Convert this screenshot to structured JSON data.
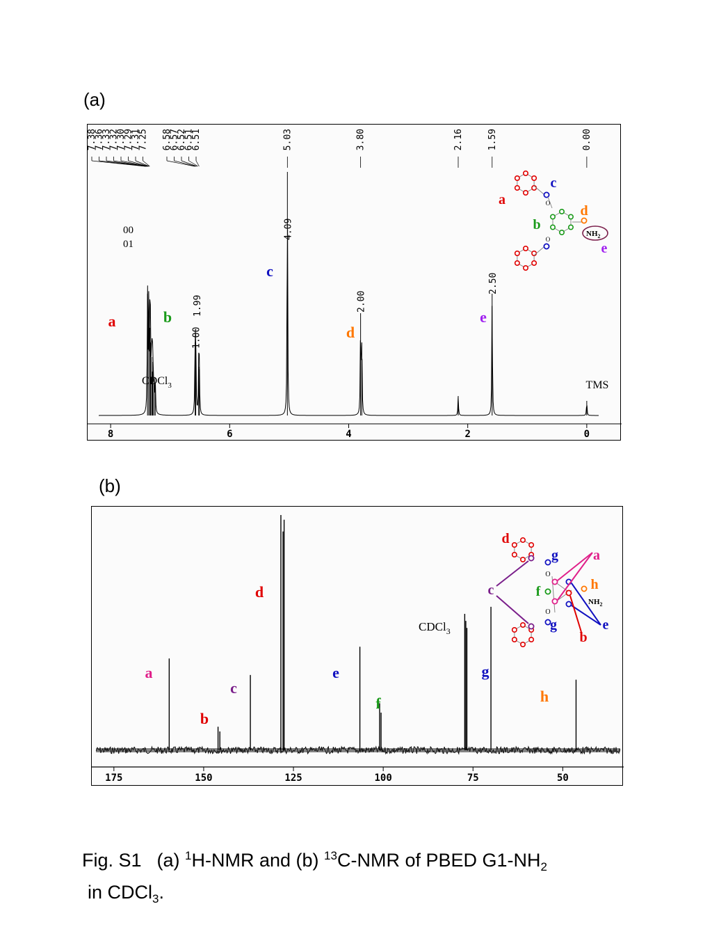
{
  "panel_a": {
    "tag": "(a)",
    "chart_data": {
      "type": "line",
      "nucleus": "1H",
      "xlim": [
        8.2,
        -0.2
      ],
      "ticks": [
        8,
        6,
        4,
        2,
        0
      ],
      "peak_labels": [
        "7.38",
        "7.36",
        "7.33",
        "7.32",
        "7.30",
        "7.29",
        "7.31",
        "7.25",
        "6.58",
        "6.57",
        "6.52",
        "6.51",
        "6.51",
        "5.03",
        "3.80",
        "2.16",
        "1.59",
        "0.00"
      ],
      "peaks": [
        {
          "x": 7.38,
          "y": 0.5
        },
        {
          "x": 7.36,
          "y": 0.42
        },
        {
          "x": 7.34,
          "y": 0.36
        },
        {
          "x": 7.33,
          "y": 0.3
        },
        {
          "x": 7.31,
          "y": 0.24
        },
        {
          "x": 7.3,
          "y": 0.18
        },
        {
          "x": 7.29,
          "y": 0.22
        },
        {
          "x": 7.27,
          "y": 0.14
        },
        {
          "x": 7.25,
          "y": 0.12
        },
        {
          "x": 6.58,
          "y": 0.3
        },
        {
          "x": 6.57,
          "y": 0.28
        },
        {
          "x": 6.52,
          "y": 0.2
        },
        {
          "x": 6.51,
          "y": 0.19
        },
        {
          "x": 5.03,
          "y": 1.0
        },
        {
          "x": 3.8,
          "y": 0.42
        },
        {
          "x": 3.78,
          "y": 0.3
        },
        {
          "x": 2.16,
          "y": 0.08
        },
        {
          "x": 1.59,
          "y": 0.5
        },
        {
          "x": 0.0,
          "y": 0.06
        }
      ],
      "integrals": [
        {
          "x": 1.0,
          "at": 6.57,
          "text": "1.00"
        },
        {
          "x": 1.99,
          "at": 6.55,
          "text": "1.99"
        },
        {
          "x": 4.09,
          "at": 5.03,
          "text": "4.09"
        },
        {
          "x": 2.0,
          "at": 3.8,
          "text": "2.00"
        },
        {
          "x": 2.5,
          "at": 1.59,
          "text": "2.50"
        }
      ],
      "integral_fragment_1": "00",
      "integral_fragment_2": "01",
      "annotations": [
        {
          "text": "a",
          "color": "#e00000"
        },
        {
          "text": "b",
          "color": "#1a9a1a"
        },
        {
          "text": "c",
          "color": "#1010c0"
        },
        {
          "text": "d",
          "color": "#ff7700"
        },
        {
          "text": "e",
          "color": "#a020f0"
        },
        {
          "text": "CDCl",
          "sub": "3",
          "color": "#000000"
        },
        {
          "text": "TMS",
          "color": "#000000"
        }
      ],
      "structure_labels": {
        "a": "a",
        "b": "b",
        "c": "c",
        "d": "d",
        "e": "e",
        "nh2": "NH",
        "nh2_sub": "2",
        "o": "O"
      }
    }
  },
  "panel_b": {
    "tag": "(b)",
    "chart_data": {
      "type": "line",
      "nucleus": "13C",
      "xlim": [
        180,
        34
      ],
      "ticks": [
        175,
        150,
        125,
        100,
        75,
        50
      ],
      "peaks": [
        {
          "x": 159.6,
          "y": 0.39
        },
        {
          "x": 146.0,
          "y": 0.1
        },
        {
          "x": 145.5,
          "y": 0.08
        },
        {
          "x": 137.0,
          "y": 0.32
        },
        {
          "x": 128.5,
          "y": 1.0
        },
        {
          "x": 127.6,
          "y": 0.98
        },
        {
          "x": 127.9,
          "y": 0.93
        },
        {
          "x": 106.5,
          "y": 0.44
        },
        {
          "x": 101.0,
          "y": 0.2
        },
        {
          "x": 100.6,
          "y": 0.16
        },
        {
          "x": 77.3,
          "y": 0.58
        },
        {
          "x": 77.0,
          "y": 0.55
        },
        {
          "x": 76.7,
          "y": 0.52
        },
        {
          "x": 70.0,
          "y": 0.61
        },
        {
          "x": 46.3,
          "y": 0.3
        }
      ],
      "annotations": [
        {
          "text": "a",
          "color": "#e0208a"
        },
        {
          "text": "b",
          "color": "#e00000"
        },
        {
          "text": "c",
          "color": "#7a1e8a"
        },
        {
          "text": "d",
          "color": "#e00000"
        },
        {
          "text": "e",
          "color": "#1010c0"
        },
        {
          "text": "f",
          "color": "#1a9a1a"
        },
        {
          "text": "g",
          "color": "#1010c0"
        },
        {
          "text": "h",
          "color": "#ff7700"
        },
        {
          "text": "CDCl",
          "sub": "3",
          "color": "#000000"
        }
      ],
      "structure_labels": {
        "a": "a",
        "b": "b",
        "c": "c",
        "d": "d",
        "e": "e",
        "f": "f",
        "g": "g",
        "h": "h",
        "nh2": "NH",
        "nh2_sub": "2",
        "o": "O"
      }
    }
  },
  "caption": {
    "fig": "Fig. S1",
    "part_a": "(a) ",
    "sup1": "1",
    "mid": "H-NMR and (b) ",
    "sup2": "13",
    "rest": "C-NMR of PBED G1-NH",
    "sub1": "2",
    "line2": "in CDCl",
    "sub2": "3",
    "end": "."
  },
  "colors": {
    "red": "#e00000",
    "green": "#1a9a1a",
    "blue": "#1010c0",
    "orange": "#ff7700",
    "purple": "#a020f0",
    "magenta": "#e0208a",
    "plum": "#7a1e8a"
  }
}
